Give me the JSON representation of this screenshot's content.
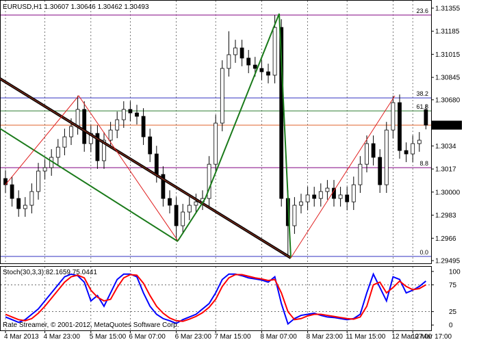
{
  "chart_data": [
    {
      "type": "candlestick",
      "title": "EURUSD,H1",
      "open": [
        1.301,
        1.30054,
        1.29953,
        1.29878,
        1.29903,
        1.30004,
        1.30155,
        1.3018,
        1.30256,
        1.30331,
        1.30407,
        1.30483,
        1.30609,
        1.30357,
        1.30432,
        1.30231,
        1.30382,
        1.30457,
        1.30533,
        1.30609,
        1.30583,
        1.30558,
        1.30407,
        1.30281,
        1.3013,
        1.29953,
        1.29903,
        1.29752,
        1.29853,
        1.29903,
        1.29928,
        1.29953,
        1.30205,
        1.30508,
        1.30911,
        1.31012,
        1.31062,
        1.30987,
        1.30936,
        1.30911,
        1.30886,
        1.30861,
        1.31213,
        1.29953,
        1.29752,
        1.29903,
        1.29928,
        1.29979,
        1.29953,
        1.30004,
        1.30029,
        1.29953,
        1.29979,
        1.29928,
        1.30054,
        1.30205,
        1.30357,
        1.30256,
        1.30054,
        1.30457,
        1.30659,
        1.30306,
        1.30281,
        1.30357,
        1.30607
      ],
      "high": [
        1.3016,
        1.30114,
        1.30013,
        1.29963,
        1.30064,
        1.30215,
        1.3024,
        1.30316,
        1.30391,
        1.30467,
        1.30543,
        1.3071,
        1.30669,
        1.30492,
        1.30492,
        1.30442,
        1.30517,
        1.30593,
        1.30669,
        1.30669,
        1.30643,
        1.30618,
        1.30467,
        1.30341,
        1.3019,
        1.30013,
        1.29963,
        1.29913,
        1.29963,
        1.29988,
        1.30013,
        1.30265,
        1.30568,
        1.30971,
        1.31185,
        1.31122,
        1.31122,
        1.31047,
        1.30996,
        1.30971,
        1.30946,
        1.31304,
        1.31273,
        1.30013,
        1.29963,
        1.29988,
        1.30039,
        1.30039,
        1.30064,
        1.30089,
        1.30089,
        1.30039,
        1.30039,
        1.30114,
        1.30265,
        1.30417,
        1.30417,
        1.30316,
        1.30517,
        1.3071,
        1.30719,
        1.30366,
        1.30417,
        1.30442,
        1.30646
      ],
      "low": [
        1.29994,
        1.29893,
        1.29818,
        1.29818,
        1.29843,
        1.29944,
        1.30095,
        1.3012,
        1.30196,
        1.30271,
        1.30347,
        1.30423,
        1.30297,
        1.30297,
        1.30171,
        1.30171,
        1.30322,
        1.30397,
        1.30473,
        1.30523,
        1.30498,
        1.30347,
        1.30221,
        1.3007,
        1.29893,
        1.29843,
        1.29645,
        1.29692,
        1.29793,
        1.29843,
        1.29868,
        1.29893,
        1.30145,
        1.30448,
        1.30851,
        1.30952,
        1.30927,
        1.30876,
        1.30851,
        1.30826,
        1.30801,
        1.30801,
        1.29893,
        1.29526,
        1.29692,
        1.29843,
        1.29868,
        1.29893,
        1.29893,
        1.29944,
        1.29893,
        1.29893,
        1.29868,
        1.29868,
        1.29994,
        1.30145,
        1.30196,
        1.29994,
        1.29994,
        1.30397,
        1.30246,
        1.30221,
        1.30221,
        1.30297,
        1.30462
      ],
      "close": [
        1.30054,
        1.29953,
        1.29878,
        1.29903,
        1.30004,
        1.30155,
        1.3018,
        1.30256,
        1.30331,
        1.30407,
        1.30483,
        1.30609,
        1.30357,
        1.30432,
        1.30231,
        1.30382,
        1.30457,
        1.30533,
        1.30609,
        1.30583,
        1.30558,
        1.30407,
        1.30281,
        1.3013,
        1.29953,
        1.29903,
        1.29752,
        1.29853,
        1.29903,
        1.29928,
        1.29953,
        1.30205,
        1.30508,
        1.30911,
        1.31012,
        1.31062,
        1.30987,
        1.30936,
        1.30911,
        1.30886,
        1.30861,
        1.31213,
        1.29953,
        1.29752,
        1.29903,
        1.29928,
        1.29979,
        1.29953,
        1.30004,
        1.30029,
        1.29953,
        1.29979,
        1.29928,
        1.30054,
        1.30205,
        1.30357,
        1.30256,
        1.30054,
        1.30457,
        1.30659,
        1.30306,
        1.30281,
        1.30357,
        1.30382,
        1.30493
      ],
      "ylim": [
        1.29475,
        1.31415
      ],
      "yticks": [
        1.31355,
        1.31185,
        1.31015,
        1.30845,
        {
          "value": 1.3068,
          "label": "1.30680"
        },
        1.3034,
        1.3017,
        {
          "value": 1.3,
          "label": "1.30000"
        },
        1.2983,
        1.2966,
        1.29495
      ],
      "grid": "x",
      "up_color": "#ffffff",
      "down_color": "#000000",
      "bid": 1.30493,
      "bid_color": "#e0622a",
      "fib_levels": [
        {
          "value": 1.31304,
          "label": "23.6",
          "color": "#800080"
        },
        {
          "value": 1.30694,
          "label": "38.2",
          "color": "#3030c0"
        },
        {
          "value": 1.30598,
          "label": "61.8",
          "color": "#2e7d32"
        },
        {
          "value": 1.3018,
          "label": "8.8",
          "color": "#800080"
        },
        {
          "value": 1.29526,
          "label": "0.0",
          "color": "#3030c0"
        }
      ]
    },
    {
      "type": "line",
      "title": "Stoch(30,3,3) 82.1659 75.0441",
      "categories": [
        "4 Mar 2013",
        null,
        null,
        null,
        null,
        null,
        "4 Mar 23:00",
        null,
        null,
        null,
        null,
        null,
        null,
        "5 Mar 15:00",
        null,
        null,
        null,
        null,
        null,
        "6 Mar 07:00",
        null,
        null,
        null,
        null,
        null,
        null,
        "6 Mar 23:00",
        null,
        null,
        null,
        null,
        null,
        "7 Mar 15:00",
        null,
        null,
        null,
        null,
        null,
        null,
        "8 Mar 07:00",
        null,
        null,
        null,
        null,
        null,
        null,
        "8 Mar 23:00",
        null,
        null,
        null,
        null,
        null,
        "11 Mar 15:00",
        null,
        null,
        null,
        null,
        null,
        null,
        "12 Mar 07:00",
        null,
        null,
        "12 Mar 17:00",
        null,
        null
      ],
      "series": [
        {
          "color": "#0000ff",
          "values": [
            15,
            10,
            5,
            10,
            20,
            30,
            45,
            60,
            75,
            90,
            95,
            92,
            80,
            45,
            55,
            35,
            60,
            85,
            95,
            95,
            90,
            60,
            35,
            20,
            12,
            8,
            3,
            10,
            15,
            20,
            30,
            40,
            60,
            85,
            95,
            95,
            92,
            88,
            86,
            84,
            80,
            90,
            40,
            2,
            12,
            18,
            20,
            22,
            18,
            15,
            14,
            12,
            10,
            12,
            20,
            60,
            95,
            70,
            45,
            90,
            85,
            60,
            65,
            72,
            82
          ]
        },
        {
          "color": "#ff0000",
          "values": [
            20,
            15,
            10,
            8,
            12,
            22,
            35,
            50,
            65,
            80,
            90,
            93,
            88,
            65,
            52,
            45,
            48,
            70,
            88,
            94,
            93,
            78,
            55,
            35,
            22,
            13,
            8,
            7,
            11,
            16,
            23,
            33,
            48,
            72,
            88,
            94,
            94,
            91,
            88,
            86,
            83,
            85,
            60,
            25,
            10,
            12,
            17,
            20,
            20,
            18,
            16,
            14,
            12,
            11,
            15,
            35,
            75,
            80,
            60,
            70,
            82,
            72,
            66,
            68,
            75
          ]
        }
      ],
      "ylim": [
        -10,
        110
      ],
      "yticks": [
        0,
        25,
        75,
        100
      ],
      "grid": true,
      "annotation": "Rate Streamer, © 2001-2012, MetaQuotes Software Corp."
    }
  ]
}
